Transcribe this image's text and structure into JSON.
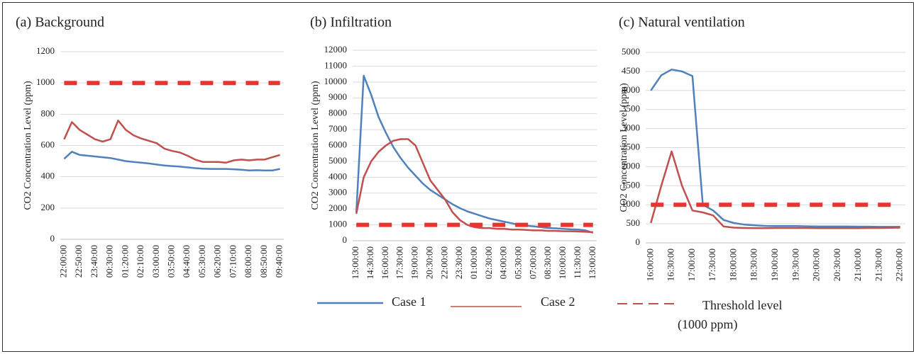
{
  "chart_data": [
    {
      "type": "line",
      "title": "(a) Background",
      "y_label": "CO2 Concentration Level (ppm)",
      "categories": [
        "22:00:00",
        null,
        "22:50:00",
        null,
        "23:40:00",
        null,
        "00:30:00",
        null,
        "01:20:00",
        null,
        "02:10:00",
        null,
        "03:00:00",
        null,
        "03:50:00",
        null,
        "04:40:00",
        null,
        "05:30:00",
        null,
        "06:20:00",
        null,
        "07:10:00",
        null,
        "08:00:00",
        null,
        "08:50:00",
        null,
        "09:40:00"
      ],
      "series": [
        {
          "name": "Case 1",
          "color": "#4f81bd",
          "values": [
            515,
            560,
            540,
            535,
            530,
            525,
            520,
            510,
            500,
            495,
            490,
            485,
            478,
            472,
            468,
            465,
            460,
            455,
            452,
            450,
            450,
            450,
            448,
            445,
            440,
            442,
            440,
            440,
            450
          ]
        },
        {
          "name": "Case 2",
          "color": "#c0504d",
          "values": [
            640,
            750,
            700,
            670,
            640,
            625,
            640,
            760,
            700,
            665,
            645,
            630,
            615,
            580,
            565,
            555,
            535,
            510,
            495,
            495,
            495,
            490,
            505,
            510,
            505,
            510,
            510,
            525,
            540
          ]
        },
        {
          "name": "Threshold level (1000 ppm)",
          "color": "#e8332f",
          "dashed": true,
          "values": [
            1000,
            1000,
            1000,
            1000,
            1000,
            1000,
            1000,
            1000,
            1000,
            1000,
            1000,
            1000,
            1000,
            1000,
            1000,
            1000,
            1000,
            1000,
            1000,
            1000,
            1000,
            1000,
            1000,
            1000,
            1000,
            1000,
            1000,
            1000,
            1000
          ]
        }
      ],
      "ylim": [
        0,
        1200
      ],
      "yticks": [
        0,
        200,
        400,
        600,
        800,
        1000,
        1200
      ],
      "grid": true
    },
    {
      "type": "line",
      "title": "(b) Infiltration",
      "y_label": "CO2 Concentration Level (ppm)",
      "categories": [
        "13:00:00",
        null,
        "14:30:00",
        null,
        "16:00:00",
        null,
        "17:30:00",
        null,
        "19:00:00",
        null,
        "20:30:00",
        null,
        "22:00:00",
        null,
        "23:30:00",
        null,
        "01:00:00",
        null,
        "02:30:00",
        null,
        "04:00:00",
        null,
        "05:30:00",
        null,
        "07:00:00",
        null,
        "08:30:00",
        null,
        "10:00:00",
        null,
        "11:30:00",
        null,
        "13:00:00"
      ],
      "series": [
        {
          "color": "#4f81bd",
          "values": [
            1800,
            10400,
            9200,
            7800,
            6800,
            5900,
            5200,
            4600,
            4100,
            3600,
            3200,
            2900,
            2600,
            2300,
            2050,
            1850,
            1700,
            1550,
            1400,
            1300,
            1200,
            1100,
            1000,
            950,
            900,
            850,
            800,
            780,
            750,
            720,
            700,
            650,
            500
          ]
        },
        {
          "color": "#c0504d",
          "values": [
            1700,
            4000,
            5000,
            5600,
            6000,
            6300,
            6400,
            6400,
            6000,
            4900,
            3800,
            3200,
            2600,
            1800,
            1300,
            1000,
            850,
            800,
            800,
            750,
            750,
            700,
            700,
            680,
            650,
            650,
            620,
            620,
            600,
            600,
            580,
            560,
            540
          ]
        },
        {
          "color": "#e8332f",
          "dashed": true,
          "values": [
            1000,
            1000,
            1000,
            1000,
            1000,
            1000,
            1000,
            1000,
            1000,
            1000,
            1000,
            1000,
            1000,
            1000,
            1000,
            1000,
            1000,
            1000,
            1000,
            1000,
            1000,
            1000,
            1000,
            1000,
            1000,
            1000,
            1000,
            1000,
            1000,
            1000,
            1000,
            1000,
            1000
          ]
        }
      ],
      "ylim": [
        0,
        12000
      ],
      "yticks": [
        0,
        1000,
        2000,
        3000,
        4000,
        5000,
        6000,
        7000,
        8000,
        9000,
        10000,
        11000,
        12000
      ],
      "grid": true
    },
    {
      "type": "line",
      "title": "(c) Natural ventilation",
      "y_label": "CO2 Concentration Level (ppm)",
      "categories": [
        "16:00:00",
        null,
        "16:30:00",
        null,
        "17:00:00",
        null,
        "17:30:00",
        null,
        "18:00:00",
        null,
        "18:30:00",
        null,
        "19:00:00",
        null,
        "19:30:00",
        null,
        "20:00:00",
        null,
        "20:30:00",
        null,
        "21:00:00",
        null,
        "21:30:00",
        null,
        "22:00:00"
      ],
      "series": [
        {
          "color": "#4f81bd",
          "values": [
            4000,
            4400,
            4550,
            4500,
            4380,
            1000,
            850,
            600,
            520,
            480,
            460,
            445,
            440,
            440,
            440,
            435,
            430,
            430,
            430,
            430,
            425,
            425,
            420,
            420,
            420
          ]
        },
        {
          "color": "#c0504d",
          "values": [
            520,
            1500,
            2400,
            1500,
            850,
            800,
            720,
            430,
            400,
            390,
            385,
            385,
            390,
            390,
            390,
            390,
            385,
            385,
            385,
            385,
            385,
            390,
            390,
            395,
            400
          ]
        },
        {
          "color": "#e8332f",
          "dashed": true,
          "values": [
            1000,
            1000,
            1000,
            1000,
            1000,
            1000,
            1000,
            1000,
            1000,
            1000,
            1000,
            1000,
            1000,
            1000,
            1000,
            1000,
            1000,
            1000,
            1000,
            1000,
            1000,
            1000,
            1000,
            1000,
            1000
          ]
        }
      ],
      "ylim": [
        0,
        5000
      ],
      "yticks": [
        0,
        500,
        1000,
        1500,
        2000,
        2500,
        3000,
        3500,
        4000,
        4500,
        5000
      ],
      "grid": true
    }
  ]
}
